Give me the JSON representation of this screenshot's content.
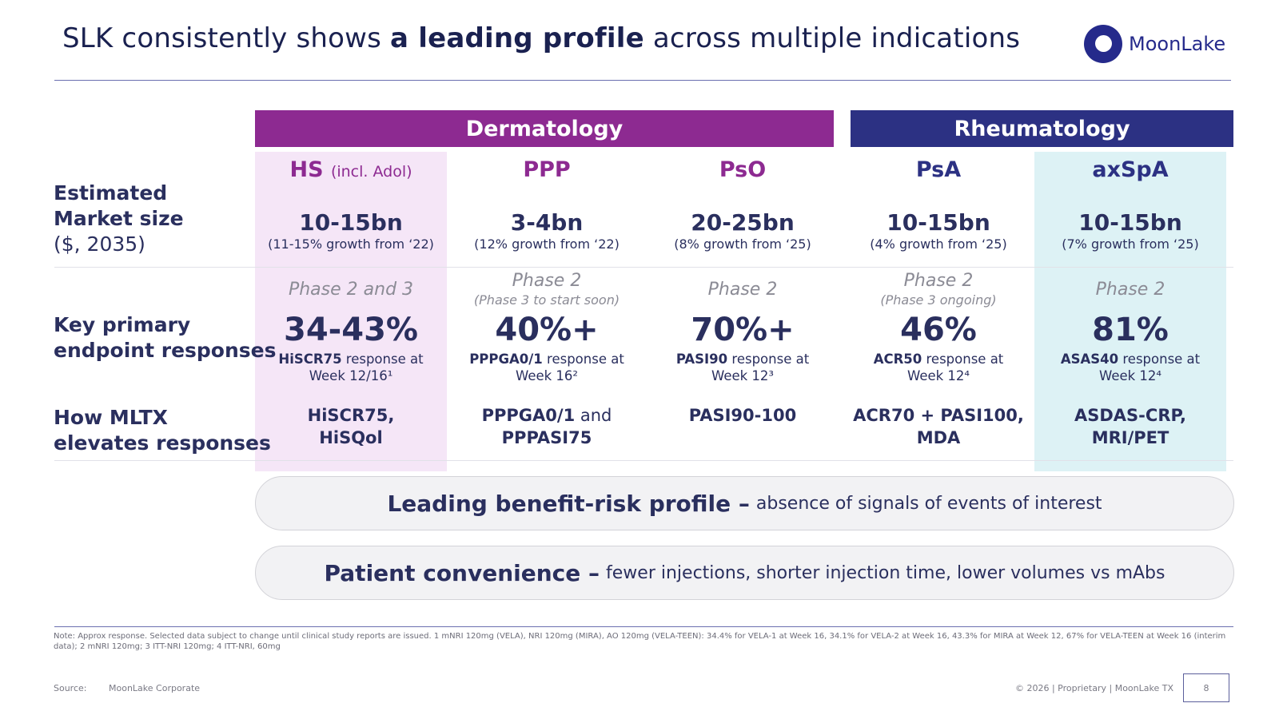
{
  "header": {
    "title_pre": "SLK consistently shows ",
    "title_bold": "a leading profile",
    "title_post": " across multiple indications",
    "logo_text": "MoonLake"
  },
  "colors": {
    "dermatology": "#8d2a91",
    "rheumatology": "#2c3183",
    "hs_bg": "#f5e6f7",
    "axspa_bg": "#ddf2f5",
    "text": "#2a2f5e"
  },
  "groups": {
    "dermatology": "Dermatology",
    "rheumatology": "Rheumatology"
  },
  "row_labels": {
    "market_line1": "Estimated",
    "market_line2": "Market size",
    "market_line3": "($, 2035)",
    "endpoint_line1": "Key primary",
    "endpoint_line2": "endpoint responses",
    "how_line1": "How MLTX",
    "how_line2": "elevates responses"
  },
  "indications": [
    {
      "name": "HS",
      "qualifier": "(incl. Adol)",
      "market": "10-15bn",
      "growth": "(11-15% growth from ‘22)",
      "phase": "Phase 2 and 3",
      "phase_note": "",
      "response": "34-43%",
      "metric": "HiSCR75",
      "metric_rest": " response at",
      "week": "Week 12/16¹",
      "how": "HiSCR75,",
      "how2": "HiSQol"
    },
    {
      "name": "PPP",
      "qualifier": "",
      "market": "3-4bn",
      "growth": "(12% growth from ‘22)",
      "phase": "Phase 2",
      "phase_note": "(Phase 3 to start soon)",
      "response": "40%+",
      "metric": "PPPGA0/1",
      "metric_rest": " response at",
      "week": "Week 16²",
      "how": "PPPGA0/1",
      "how_and": " and",
      "how2": "PPPASI75"
    },
    {
      "name": "PsO",
      "qualifier": "",
      "market": "20-25bn",
      "growth": "(8% growth from ‘25)",
      "phase": "Phase 2",
      "phase_note": "",
      "response": "70%+",
      "metric": "PASI90",
      "metric_rest": " response at",
      "week": "Week 12³",
      "how": "PASI90-100",
      "how2": ""
    },
    {
      "name": "PsA",
      "qualifier": "",
      "market": "10-15bn",
      "growth": "(4% growth from ‘25)",
      "phase": "Phase 2",
      "phase_note": "(Phase 3 ongoing)",
      "response": "46%",
      "metric": "ACR50",
      "metric_rest": " response at",
      "week": "Week 12⁴",
      "how": "ACR70 + PASI100,",
      "how2": "MDA"
    },
    {
      "name": "axSpA",
      "qualifier": "",
      "market": "10-15bn",
      "growth": "(7% growth from ‘25)",
      "phase": "Phase 2",
      "phase_note": "",
      "response": "81%",
      "metric": "ASAS40",
      "metric_rest": " response at",
      "week": "Week 12⁴",
      "how": "ASDAS-CRP,",
      "how2": "MRI/PET"
    }
  ],
  "pills": [
    {
      "bold": "Leading benefit-risk profile –",
      "desc": "absence of signals of events of interest"
    },
    {
      "bold": "Patient convenience –",
      "desc": "fewer injections, shorter injection time, lower volumes vs mAbs"
    }
  ],
  "footer": {
    "note": "Note: Approx response. Selected data subject to change until clinical study reports are issued. 1 mNRI 120mg (VELA), NRI 120mg (MIRA), AO 120mg (VELA-TEEN): 34.4% for VELA-1 at Week 16, 34.1% for VELA-2 at Week 16, 43.3% for MIRA at Week 12, 67% for VELA-TEEN at Week 16 (interim data); 2 mNRI 120mg; 3 ITT-NRI 120mg; 4 ITT-NRI, 60mg",
    "source_label": "Source:",
    "source_value": "MoonLake Corporate",
    "copyright": "© 2026  |  Proprietary  |  MoonLake TX",
    "page": "8"
  }
}
